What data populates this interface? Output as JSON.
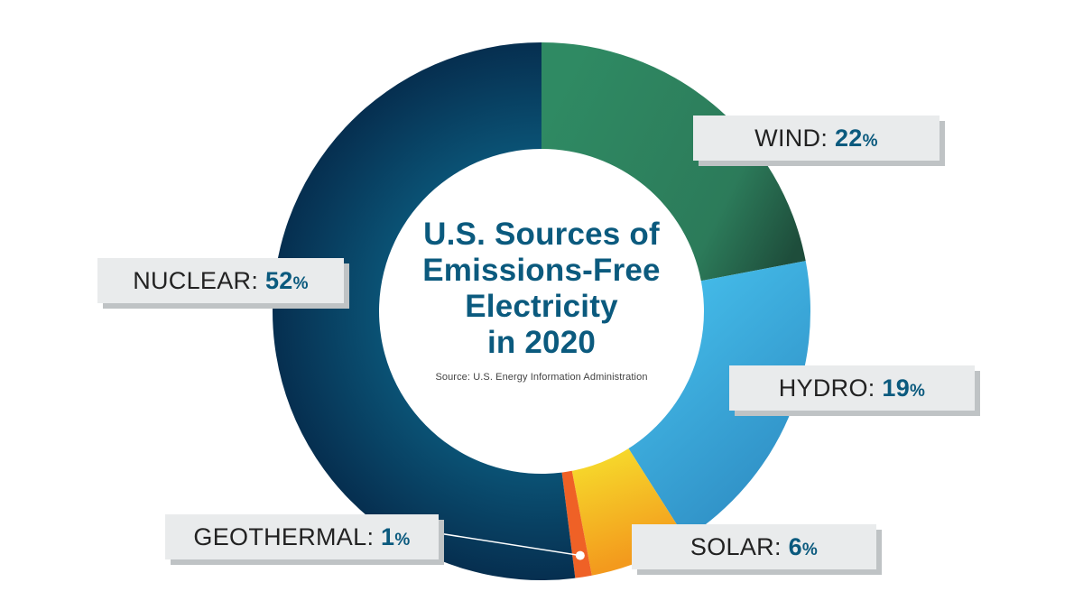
{
  "title_lines": [
    "U.S. Sources of",
    "Emissions-Free",
    "Electricity",
    "in 2020"
  ],
  "source": "Source: U.S. Energy Information Administration",
  "chart_data": {
    "type": "pie",
    "title": "U.S. Sources of Emissions-Free Electricity in 2020",
    "subtitle": "Source: U.S. Energy Information Administration",
    "unit": "%",
    "donut": true,
    "slices": [
      {
        "name": "WIND",
        "value": 22,
        "color": "#2e8460"
      },
      {
        "name": "HYDRO",
        "value": 19,
        "color": "#45b8e6"
      },
      {
        "name": "SOLAR",
        "value": 6,
        "color": "#f4c321"
      },
      {
        "name": "GEOTHERMAL",
        "value": 1,
        "color": "#ef6126"
      },
      {
        "name": "NUCLEAR",
        "value": 52,
        "color": "#0b5a7e"
      }
    ]
  },
  "labels": [
    {
      "name": "WIND",
      "value": "22",
      "suffix": "%"
    },
    {
      "name": "HYDRO",
      "value": "19",
      "suffix": "%"
    },
    {
      "name": "SOLAR",
      "value": "6",
      "suffix": "%"
    },
    {
      "name": "GEOTHERMAL",
      "value": "1",
      "suffix": "%"
    },
    {
      "name": "NUCLEAR",
      "value": "52",
      "suffix": "%"
    }
  ],
  "separator": ": ",
  "colors": {
    "accent": "#0b5a7e",
    "label_bg": "#e9ebec",
    "label_shadow": "#bfc3c5"
  }
}
